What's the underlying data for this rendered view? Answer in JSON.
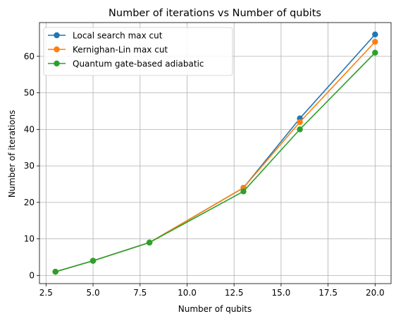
{
  "chart_data": {
    "type": "line",
    "title": "Number of iterations vs Number of qubits",
    "xlabel": "Number of qubits",
    "ylabel": "Number of iterations",
    "x": [
      3,
      5,
      8,
      13,
      16,
      20
    ],
    "series": [
      {
        "name": "Local search max cut",
        "values": [
          1,
          4,
          9,
          24,
          43,
          66
        ],
        "color": "#1f77b4"
      },
      {
        "name": "Kernighan-Lin max cut",
        "values": [
          1,
          4,
          9,
          24,
          42,
          64
        ],
        "color": "#ff7f0e"
      },
      {
        "name": "Quantum gate-based adiabatic",
        "values": [
          1,
          4,
          9,
          23,
          40,
          61
        ],
        "color": "#2ca02c"
      }
    ],
    "xlim": [
      2.15,
      20.85
    ],
    "ylim": [
      -2.25,
      69.25
    ],
    "xticks": [
      2.5,
      5.0,
      7.5,
      10.0,
      12.5,
      15.0,
      17.5,
      20.0
    ],
    "xtick_labels": [
      "2.5",
      "5.0",
      "7.5",
      "10.0",
      "12.5",
      "15.0",
      "17.5",
      "20.0"
    ],
    "yticks": [
      0,
      10,
      20,
      30,
      40,
      50,
      60
    ],
    "ytick_labels": [
      "0",
      "10",
      "20",
      "30",
      "40",
      "50",
      "60"
    ],
    "grid": true,
    "legend_position": "top-left",
    "marker": "circle"
  }
}
